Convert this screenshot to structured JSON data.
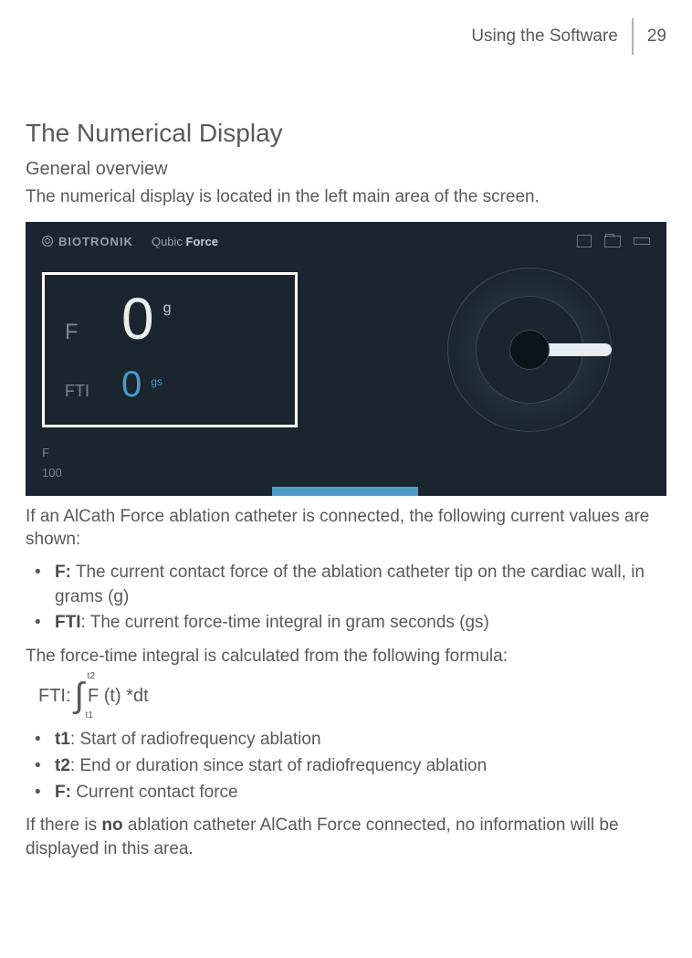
{
  "header": {
    "section": "Using the Software",
    "page": "29"
  },
  "title": "The Numerical Display",
  "subtitle": "General overview",
  "intro": "The numerical display is located in the left main area of the screen.",
  "screenshot": {
    "brand": "BIOTRONIK",
    "product_prefix": "Qubic ",
    "product_bold": "Force",
    "f_label": "F",
    "f_value": "0",
    "f_unit": "g",
    "fti_label": "FTI",
    "fti_value": "0",
    "fti_unit": "gs",
    "axis_f": "F",
    "axis_100": "100",
    "colors": {
      "bg": "#1a2530",
      "text_muted": "#7a8690",
      "text_light": "#e8edf0",
      "accent": "#4a9cc4",
      "border": "#ffffff"
    }
  },
  "after_screenshot": "If an AlCath Force ablation catheter is connected, the following current values are shown:",
  "bullets1": [
    {
      "bold": "F:",
      "rest": " The current contact force of the ablation catheter tip on the cardiac wall, in grams (g)"
    },
    {
      "bold": "FTI",
      "rest": ": The current force-time integral in gram seconds (gs)"
    }
  ],
  "formula_intro": "The force-time integral is calculated from the following formula:",
  "formula": {
    "label": "FTI: ",
    "upper": "t2",
    "lower": "t1",
    "body": "F (t) *dt"
  },
  "bullets2": [
    {
      "bold": "t1",
      "rest": ": Start of radiofrequency ablation"
    },
    {
      "bold": "t2",
      "rest": ": End or duration since start of radiofrequency ablation"
    },
    {
      "bold": "F:",
      "rest": " Current contact force"
    }
  ],
  "closing_pre": "If there is ",
  "closing_bold": "no",
  "closing_post": " ablation catheter AlCath Force connected, no information will be displayed in this area."
}
